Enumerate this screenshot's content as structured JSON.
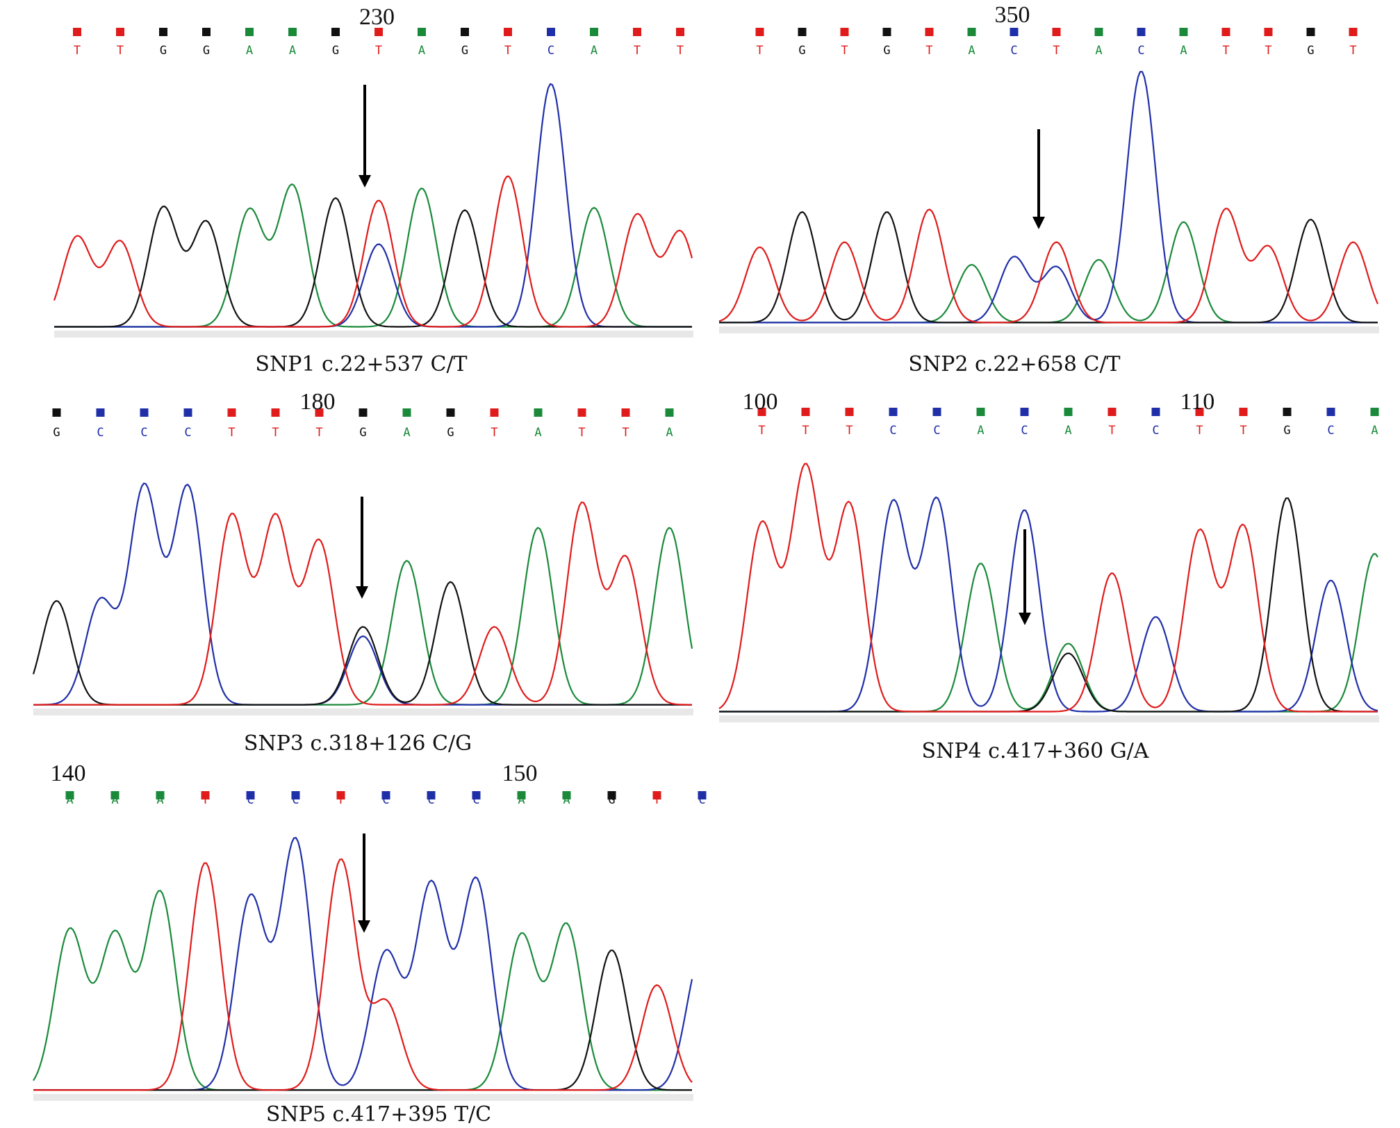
{
  "colors": {
    "A": "#1a8a3a",
    "C": "#1f2fa8",
    "G": "#111111",
    "T": "#e01b1b"
  },
  "chart_data": [
    {
      "type": "line",
      "caption": "SNP1 c.22+537 C/T",
      "position_labels": [
        {
          "text": "230",
          "base_index": 7
        }
      ],
      "bases": [
        "T",
        "T",
        "G",
        "G",
        "A",
        "A",
        "G",
        "T",
        "A",
        "G",
        "T",
        "C",
        "A",
        "T",
        "T"
      ],
      "snp_index": 7,
      "peaks": [
        {
          "base": "T",
          "h": 0.37
        },
        {
          "base": "T",
          "h": 0.35
        },
        {
          "base": "G",
          "h": 0.49
        },
        {
          "base": "G",
          "h": 0.43
        },
        {
          "base": "A",
          "h": 0.48
        },
        {
          "base": "A",
          "h": 0.58
        },
        {
          "base": "G",
          "h": 0.53
        },
        {
          "base": "T",
          "h": 0.52
        },
        {
          "base": "C",
          "h": 0.34,
          "sec": true
        },
        {
          "base": "A",
          "h": 0.57
        },
        {
          "base": "G",
          "h": 0.48
        },
        {
          "base": "T",
          "h": 0.62
        },
        {
          "base": "C",
          "h": 1.0
        },
        {
          "base": "A",
          "h": 0.49
        },
        {
          "base": "T",
          "h": 0.46
        },
        {
          "base": "T",
          "h": 0.39
        }
      ]
    },
    {
      "type": "line",
      "caption": "SNP2 c.22+658 C/T",
      "position_labels": [
        {
          "text": "350",
          "base_index": 6
        }
      ],
      "bases": [
        "T",
        "G",
        "T",
        "G",
        "T",
        "A",
        "C",
        "T",
        "A",
        "C",
        "A",
        "T",
        "T",
        "G",
        "T"
      ],
      "snp_index": 7,
      "peaks": [
        {
          "base": "T",
          "h": 0.3
        },
        {
          "base": "G",
          "h": 0.44
        },
        {
          "base": "T",
          "h": 0.32
        },
        {
          "base": "G",
          "h": 0.44
        },
        {
          "base": "T",
          "h": 0.45
        },
        {
          "base": "A",
          "h": 0.23
        },
        {
          "base": "C",
          "h": 0.26
        },
        {
          "base": "T",
          "h": 0.32
        },
        {
          "base": "C",
          "h": 0.22,
          "sec": true
        },
        {
          "base": "A",
          "h": 0.25
        },
        {
          "base": "C",
          "h": 1.0
        },
        {
          "base": "A",
          "h": 0.4
        },
        {
          "base": "T",
          "h": 0.45
        },
        {
          "base": "T",
          "h": 0.3
        },
        {
          "base": "G",
          "h": 0.41
        },
        {
          "base": "T",
          "h": 0.32
        }
      ]
    },
    {
      "type": "line",
      "caption": "SNP3 c.318+126 C/G",
      "position_labels": [
        {
          "text": "180",
          "base_index": 6
        }
      ],
      "bases": [
        "G",
        "C",
        "C",
        "C",
        "T",
        "T",
        "T",
        "G",
        "A",
        "G",
        "T",
        "A",
        "T",
        "T",
        "A"
      ],
      "snp_index": 7,
      "peaks": [
        {
          "base": "G",
          "h": 0.44
        },
        {
          "base": "C",
          "h": 0.44
        },
        {
          "base": "C",
          "h": 0.92
        },
        {
          "base": "C",
          "h": 0.92
        },
        {
          "base": "T",
          "h": 0.8
        },
        {
          "base": "T",
          "h": 0.79
        },
        {
          "base": "T",
          "h": 0.69
        },
        {
          "base": "G",
          "h": 0.33
        },
        {
          "base": "C",
          "h": 0.29,
          "sec": true
        },
        {
          "base": "A",
          "h": 0.61
        },
        {
          "base": "G",
          "h": 0.52
        },
        {
          "base": "T",
          "h": 0.33
        },
        {
          "base": "A",
          "h": 0.75
        },
        {
          "base": "T",
          "h": 0.85
        },
        {
          "base": "T",
          "h": 0.62
        },
        {
          "base": "A",
          "h": 0.75
        }
      ]
    },
    {
      "type": "line",
      "caption": "SNP4 c.417+360 G/A",
      "position_labels": [
        {
          "text": "100",
          "base_index": 0
        },
        {
          "text": "110",
          "base_index": 10
        }
      ],
      "bases": [
        "T",
        "T",
        "T",
        "C",
        "C",
        "A",
        "C",
        "A",
        "T",
        "C",
        "T",
        "T",
        "G",
        "C",
        "A"
      ],
      "snp_index": 7,
      "peaks": [
        {
          "base": "T",
          "h": 0.77
        },
        {
          "base": "T",
          "h": 1.0
        },
        {
          "base": "T",
          "h": 0.85
        },
        {
          "base": "C",
          "h": 0.86
        },
        {
          "base": "C",
          "h": 0.87
        },
        {
          "base": "A",
          "h": 0.61
        },
        {
          "base": "C",
          "h": 0.83
        },
        {
          "base": "A",
          "h": 0.28
        },
        {
          "base": "G",
          "h": 0.24,
          "sec": true
        },
        {
          "base": "T",
          "h": 0.57
        },
        {
          "base": "C",
          "h": 0.39
        },
        {
          "base": "T",
          "h": 0.74
        },
        {
          "base": "T",
          "h": 0.76
        },
        {
          "base": "G",
          "h": 0.88
        },
        {
          "base": "C",
          "h": 0.54
        },
        {
          "base": "A",
          "h": 0.65
        }
      ]
    },
    {
      "type": "line",
      "caption": "SNP5 c.417+395 T/C",
      "position_labels": [
        {
          "text": "140",
          "base_index": 0
        },
        {
          "text": "150",
          "base_index": 10
        }
      ],
      "bases": [
        "A",
        "A",
        "A",
        "T",
        "C",
        "C",
        "T",
        "C",
        "C",
        "C",
        "A",
        "A",
        "G",
        "T",
        "C"
      ],
      "snp_index": 7,
      "peaks": [
        {
          "base": "A",
          "h": 0.64
        },
        {
          "base": "A",
          "h": 0.62
        },
        {
          "base": "A",
          "h": 0.79
        },
        {
          "base": "T",
          "h": 0.91
        },
        {
          "base": "C",
          "h": 0.77
        },
        {
          "base": "C",
          "h": 1.0
        },
        {
          "base": "T",
          "h": 0.92
        },
        {
          "base": "C",
          "h": 0.55
        },
        {
          "base": "T",
          "h": 0.35,
          "sec": true
        },
        {
          "base": "C",
          "h": 0.82
        },
        {
          "base": "C",
          "h": 0.84
        },
        {
          "base": "A",
          "h": 0.62
        },
        {
          "base": "A",
          "h": 0.66
        },
        {
          "base": "G",
          "h": 0.56
        },
        {
          "base": "T",
          "h": 0.42
        },
        {
          "base": "C",
          "h": 0.55
        }
      ]
    }
  ]
}
